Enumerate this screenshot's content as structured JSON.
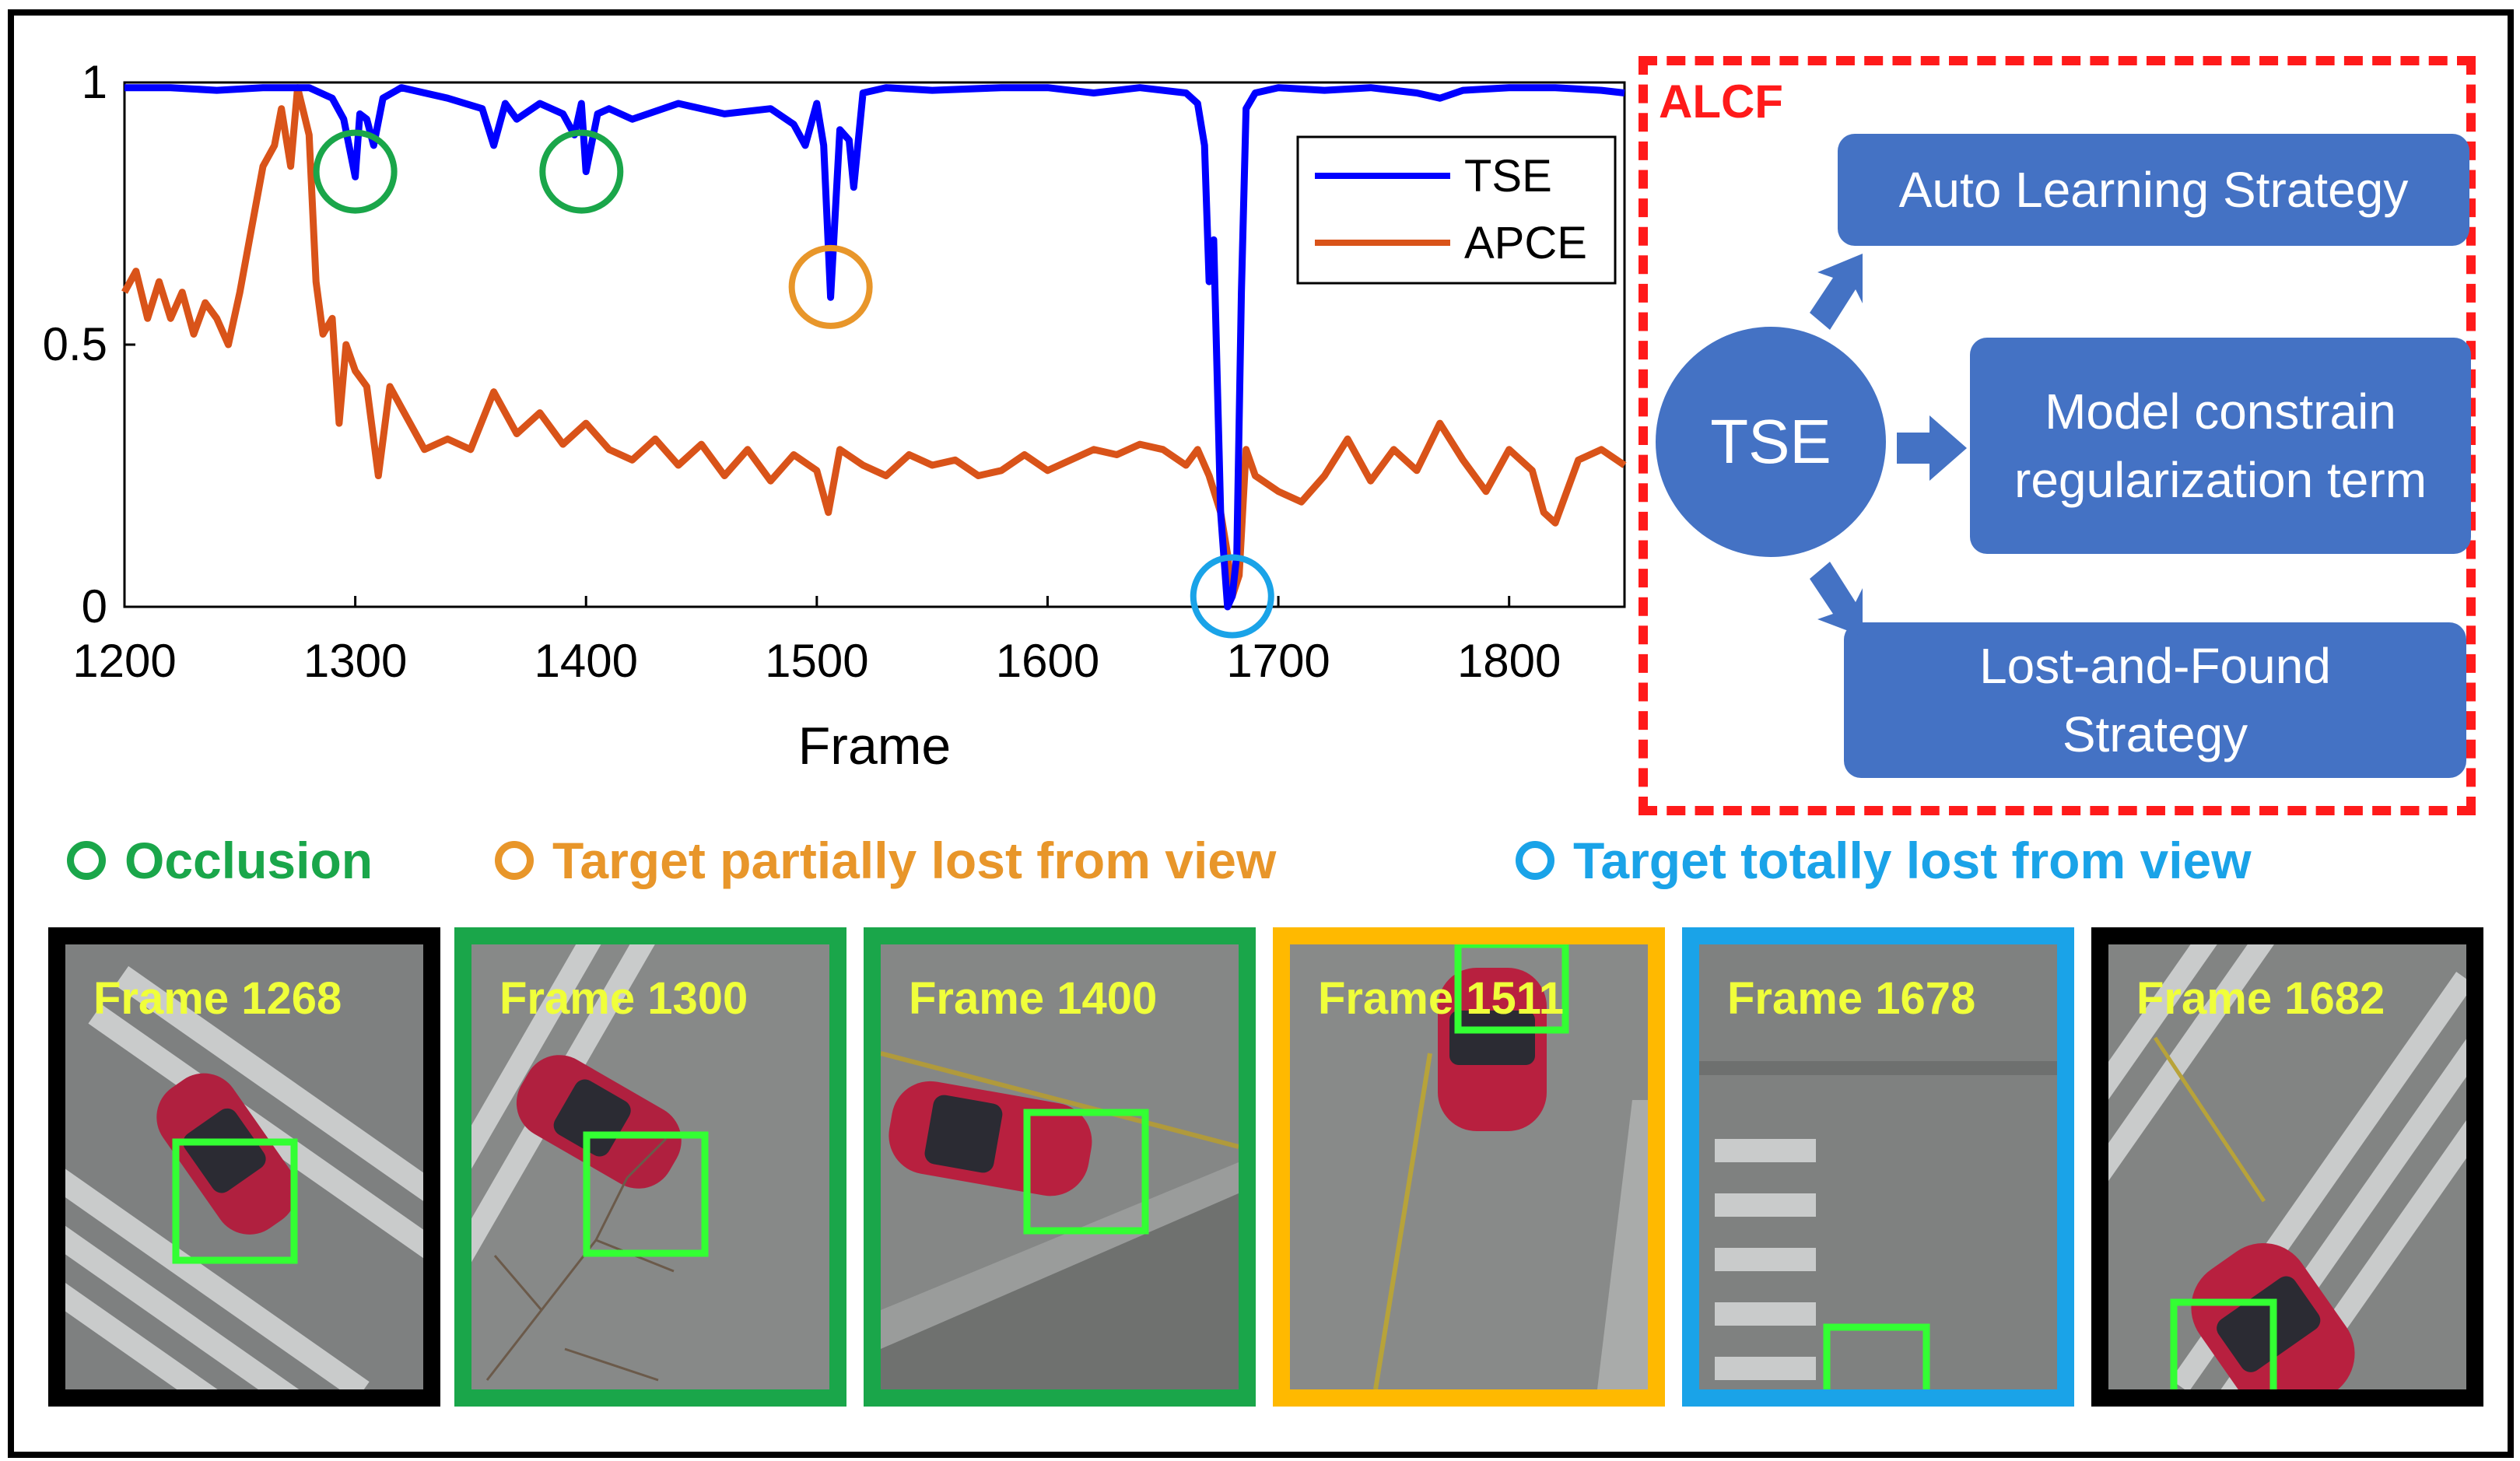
{
  "chart_data": {
    "type": "line",
    "xlabel": "Frame",
    "ylabel": "",
    "xlim": [
      1200,
      1850
    ],
    "ylim": [
      0,
      1
    ],
    "x_ticks": [
      1200,
      1300,
      1400,
      1500,
      1600,
      1700,
      1800
    ],
    "y_ticks": [
      "0",
      "0.5",
      "1"
    ],
    "y_tick_values": [
      0,
      0.5,
      1
    ],
    "legend_position": "top-right",
    "grid": false,
    "series": [
      {
        "name": "TSE",
        "color": "#0000ff",
        "x": [
          1200,
          1220,
          1240,
          1260,
          1280,
          1290,
          1295,
          1300,
          1302,
          1305,
          1308,
          1312,
          1320,
          1340,
          1355,
          1360,
          1365,
          1370,
          1380,
          1390,
          1395,
          1398,
          1400,
          1405,
          1410,
          1420,
          1440,
          1460,
          1480,
          1490,
          1495,
          1500,
          1503,
          1506,
          1510,
          1514,
          1516,
          1520,
          1530,
          1550,
          1580,
          1600,
          1620,
          1640,
          1660,
          1665,
          1668,
          1670,
          1672,
          1675,
          1678,
          1680,
          1682,
          1684,
          1686,
          1690,
          1700,
          1720,
          1740,
          1760,
          1770,
          1780,
          1800,
          1820,
          1840,
          1850
        ],
        "y": [
          0.99,
          0.99,
          0.985,
          0.99,
          0.99,
          0.97,
          0.93,
          0.82,
          0.94,
          0.93,
          0.88,
          0.97,
          0.99,
          0.97,
          0.95,
          0.88,
          0.96,
          0.93,
          0.96,
          0.94,
          0.9,
          0.96,
          0.83,
          0.94,
          0.95,
          0.93,
          0.96,
          0.94,
          0.95,
          0.92,
          0.88,
          0.96,
          0.88,
          0.59,
          0.91,
          0.89,
          0.8,
          0.98,
          0.99,
          0.985,
          0.99,
          0.99,
          0.98,
          0.99,
          0.98,
          0.96,
          0.88,
          0.62,
          0.7,
          0.18,
          0.0,
          0.02,
          0.1,
          0.6,
          0.95,
          0.98,
          0.99,
          0.985,
          0.99,
          0.98,
          0.97,
          0.985,
          0.99,
          0.99,
          0.985,
          0.98
        ]
      },
      {
        "name": "APCE",
        "color": "#d95319",
        "x": [
          1200,
          1205,
          1210,
          1215,
          1220,
          1225,
          1230,
          1235,
          1240,
          1245,
          1250,
          1255,
          1260,
          1265,
          1268,
          1272,
          1275,
          1280,
          1283,
          1286,
          1290,
          1293,
          1296,
          1300,
          1305,
          1310,
          1315,
          1320,
          1330,
          1340,
          1350,
          1360,
          1370,
          1380,
          1390,
          1400,
          1410,
          1420,
          1430,
          1440,
          1450,
          1460,
          1470,
          1480,
          1490,
          1500,
          1505,
          1510,
          1520,
          1530,
          1540,
          1550,
          1560,
          1570,
          1580,
          1590,
          1600,
          1610,
          1620,
          1630,
          1640,
          1650,
          1660,
          1665,
          1670,
          1675,
          1678,
          1680,
          1683,
          1686,
          1690,
          1700,
          1710,
          1720,
          1730,
          1740,
          1750,
          1760,
          1770,
          1780,
          1790,
          1800,
          1810,
          1815,
          1820,
          1830,
          1840,
          1850
        ],
        "y": [
          0.6,
          0.64,
          0.55,
          0.62,
          0.55,
          0.6,
          0.52,
          0.58,
          0.55,
          0.5,
          0.6,
          0.72,
          0.84,
          0.88,
          0.95,
          0.84,
          0.99,
          0.9,
          0.62,
          0.52,
          0.55,
          0.35,
          0.5,
          0.45,
          0.42,
          0.25,
          0.42,
          0.38,
          0.3,
          0.32,
          0.3,
          0.41,
          0.33,
          0.37,
          0.31,
          0.35,
          0.3,
          0.28,
          0.32,
          0.27,
          0.31,
          0.25,
          0.3,
          0.24,
          0.29,
          0.26,
          0.18,
          0.3,
          0.27,
          0.25,
          0.29,
          0.27,
          0.28,
          0.25,
          0.26,
          0.29,
          0.26,
          0.28,
          0.3,
          0.29,
          0.31,
          0.3,
          0.27,
          0.3,
          0.25,
          0.18,
          0.1,
          0.02,
          0.06,
          0.3,
          0.25,
          0.22,
          0.2,
          0.25,
          0.32,
          0.24,
          0.3,
          0.26,
          0.35,
          0.28,
          0.22,
          0.3,
          0.26,
          0.18,
          0.16,
          0.28,
          0.3,
          0.27
        ]
      }
    ],
    "annotations": [
      {
        "x": 1300,
        "y": 0.83,
        "category": "occlusion"
      },
      {
        "x": 1398,
        "y": 0.83,
        "category": "occlusion"
      },
      {
        "x": 1506,
        "y": 0.61,
        "category": "partial"
      },
      {
        "x": 1680,
        "y": 0.02,
        "category": "total"
      }
    ]
  },
  "diagram": {
    "title": "ALCF",
    "center": "TSE",
    "boxes": {
      "auto_learning": "Auto Learning Strategy",
      "model_constrain": "Model constrain regularization term",
      "lost_found": "Lost-and-Found Strategy"
    }
  },
  "legend_categories": {
    "occlusion": {
      "label": "Occlusion",
      "color": "#1aa64a"
    },
    "partial": {
      "label": "Target partially lost from view",
      "color": "#e8962a"
    },
    "total": {
      "label": "Target totally lost from view",
      "color": "#1aa3e8"
    }
  },
  "thumbnails": [
    {
      "label": "Frame 1268",
      "border": "#000000",
      "box_color": "#33ff33"
    },
    {
      "label": "Frame 1300",
      "border": "#1aa64a",
      "box_color": "#33ff33"
    },
    {
      "label": "Frame 1400",
      "border": "#1aa64a",
      "box_color": "#33ff33"
    },
    {
      "label": "Frame 1511",
      "border": "#ffb900",
      "box_color": "#33ff33"
    },
    {
      "label": "Frame 1678",
      "border": "#1aa3e8",
      "box_color": "#33ff33"
    },
    {
      "label": "Frame 1682",
      "border": "#000000",
      "box_color": "#33ff33"
    }
  ]
}
